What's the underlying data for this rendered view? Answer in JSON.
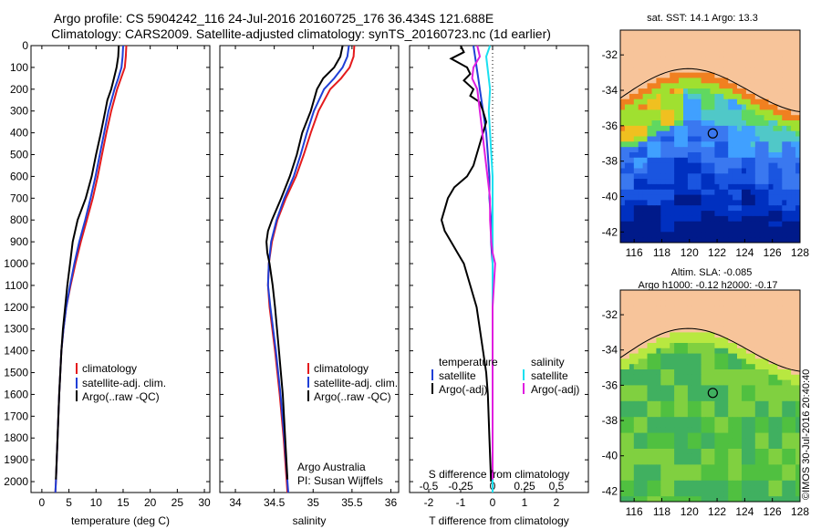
{
  "header": {
    "line1": "Argo profile: CS 5904242_116 24-Jul-2016 20160725_176 36.434S 121.688E",
    "line2": "Climatology: CARS2009. Satellite-adjusted climatology: synTS_20160723.nc (1d earlier)"
  },
  "copyright": "©IMOS 30-Jul-2016 20:40:40",
  "colors": {
    "climatology": "#e41a1c",
    "satellite": "#1f3fd6",
    "argo": "#000000",
    "sat_salinity": "#19e0f0",
    "argo_adj_salinity": "#e01ee0"
  },
  "panels": {
    "temperature": {
      "xlabel": "temperature (deg C)",
      "legend": [
        "climatology",
        "satellite-adj. clim.",
        "Argo(..raw -QC)"
      ]
    },
    "salinity": {
      "xlabel": "salinity",
      "legend": [
        "climatology",
        "satellite-adj. clim.",
        "Argo(..raw -QC)"
      ],
      "note1": "Argo Australia",
      "note2": "PI: Susan Wijffels"
    },
    "difference": {
      "xlabel": "T difference from climatology",
      "top_axis_label": "S difference from climatology",
      "legend_t_title": "temperature",
      "legend_s_title": "salinity",
      "legend_t": [
        "satellite",
        "Argo(-adj)"
      ],
      "legend_s": [
        "satellite",
        "Argo(-adj)"
      ]
    },
    "map_sst": {
      "title": "sat. SST: 14.1  Argo: 13.3",
      "legend": []
    },
    "map_sla": {
      "title1": "Altim. SLA: -0.085",
      "title2": "Argo h1000: -0.12 h2000: -0.17"
    }
  },
  "chart_data": [
    {
      "type": "line",
      "id": "temperature",
      "xlabel": "temperature (deg C)",
      "xlim": [
        -2,
        31
      ],
      "ylim": [
        0,
        2050
      ],
      "yticks": [
        0,
        100,
        200,
        300,
        400,
        500,
        600,
        700,
        800,
        900,
        1000,
        1100,
        1200,
        1300,
        1400,
        1500,
        1600,
        1700,
        1800,
        1900,
        2000
      ],
      "xticks": [
        0,
        5,
        10,
        15,
        20,
        25,
        30
      ],
      "series": [
        {
          "name": "climatology",
          "depth": [
            0,
            50,
            100,
            150,
            200,
            300,
            400,
            500,
            600,
            700,
            800,
            900,
            1000,
            1100,
            1200,
            1300,
            1400,
            1600,
            1800,
            2000,
            2050
          ],
          "values": [
            15.6,
            15.5,
            15.3,
            14.6,
            13.9,
            12.8,
            11.9,
            11.1,
            10.3,
            9.4,
            8.3,
            7.2,
            6.2,
            5.3,
            4.5,
            4.0,
            3.6,
            3.2,
            2.9,
            2.6,
            2.5
          ]
        },
        {
          "name": "satellite-adj. clim.",
          "depth": [
            0,
            50,
            100,
            150,
            200,
            300,
            400,
            500,
            600,
            700,
            800,
            900,
            1000,
            1100,
            1200,
            1300,
            1400,
            1600,
            1800,
            2000,
            2050
          ],
          "values": [
            15.0,
            14.9,
            14.7,
            14.1,
            13.4,
            12.3,
            11.5,
            10.7,
            9.9,
            9.0,
            8.0,
            6.9,
            6.0,
            5.2,
            4.5,
            4.0,
            3.6,
            3.2,
            2.9,
            2.6,
            2.5
          ]
        },
        {
          "name": "Argo(..raw -QC)",
          "depth": [
            0,
            50,
            100,
            150,
            200,
            250,
            300,
            400,
            500,
            600,
            700,
            800,
            900,
            1000,
            1100,
            1200,
            1300,
            1400,
            1600,
            1800,
            1990
          ],
          "values": [
            14.2,
            14.1,
            13.8,
            13.3,
            12.8,
            12.1,
            11.7,
            10.9,
            10.0,
            9.2,
            8.1,
            6.6,
            5.7,
            5.2,
            4.7,
            4.3,
            3.9,
            3.6,
            3.2,
            2.9,
            2.6
          ]
        }
      ]
    },
    {
      "type": "line",
      "id": "salinity",
      "xlabel": "salinity",
      "xlim": [
        33.8,
        36.1
      ],
      "ylim": [
        0,
        2050
      ],
      "xticks": [
        34,
        34.5,
        35,
        35.5,
        36
      ],
      "series": [
        {
          "name": "climatology",
          "depth": [
            0,
            50,
            100,
            150,
            200,
            300,
            400,
            500,
            600,
            700,
            800,
            900,
            1000,
            1100,
            1200,
            1400,
            1600,
            1800,
            2000,
            2050
          ],
          "values": [
            35.53,
            35.52,
            35.47,
            35.36,
            35.22,
            35.07,
            34.97,
            34.88,
            34.78,
            34.65,
            34.54,
            34.47,
            34.43,
            34.42,
            34.44,
            34.51,
            34.57,
            34.62,
            34.66,
            34.67
          ]
        },
        {
          "name": "satellite-adj. clim.",
          "depth": [
            0,
            50,
            100,
            150,
            200,
            300,
            400,
            500,
            600,
            700,
            800,
            900,
            1000,
            1100,
            1200,
            1400,
            1600,
            1800,
            2000,
            2050
          ],
          "values": [
            35.46,
            35.44,
            35.38,
            35.27,
            35.14,
            35.01,
            34.92,
            34.84,
            34.75,
            34.63,
            34.53,
            34.46,
            34.43,
            34.42,
            34.45,
            34.52,
            34.58,
            34.63,
            34.67,
            34.68
          ]
        },
        {
          "name": "Argo(..raw -QC)",
          "depth": [
            0,
            50,
            100,
            150,
            200,
            300,
            400,
            500,
            600,
            700,
            800,
            850,
            900,
            950,
            1000,
            1100,
            1200,
            1400,
            1600,
            1800,
            1990
          ],
          "values": [
            35.38,
            35.35,
            35.27,
            35.13,
            35.05,
            34.97,
            34.86,
            34.79,
            34.7,
            34.59,
            34.47,
            34.42,
            34.4,
            34.41,
            34.44,
            34.48,
            34.51,
            34.56,
            34.61,
            34.64,
            34.67
          ]
        }
      ]
    },
    {
      "type": "line",
      "id": "difference",
      "xlabel": "T difference from climatology",
      "top_label": "S difference from climatology",
      "xlim": [
        -2.6,
        3.0
      ],
      "ylim": [
        0,
        2050
      ],
      "xticks": [
        -2,
        -1,
        0,
        1,
        2
      ],
      "top_ticks": [
        -0.5,
        -0.25,
        0,
        0.25,
        0.5
      ],
      "series": [
        {
          "name": "T satellite",
          "depth": [
            0,
            50,
            100,
            150,
            200,
            300,
            400,
            500,
            600,
            700,
            800,
            900,
            1000,
            1200,
            1400,
            1600,
            1800,
            2000,
            2050
          ],
          "values": [
            -0.6,
            -0.55,
            -0.5,
            -0.45,
            -0.4,
            -0.3,
            -0.2,
            -0.15,
            -0.1,
            -0.1,
            -0.05,
            -0.05,
            0,
            0,
            0,
            0,
            0,
            0,
            0
          ]
        },
        {
          "name": "T Argo(-adj)",
          "depth": [
            0,
            30,
            60,
            100,
            130,
            160,
            200,
            230,
            260,
            300,
            350,
            400,
            450,
            500,
            550,
            600,
            650,
            700,
            750,
            800,
            850,
            900,
            950,
            1000,
            1100,
            1200,
            1300,
            1400,
            1500,
            1600,
            1800,
            2000
          ],
          "values": [
            -1.0,
            -0.9,
            -1.3,
            -0.8,
            -0.7,
            -0.9,
            -0.6,
            -0.7,
            -0.4,
            -0.3,
            -0.2,
            -0.3,
            -0.4,
            -0.5,
            -0.6,
            -0.8,
            -1.2,
            -1.4,
            -1.5,
            -1.6,
            -1.5,
            -1.3,
            -1.1,
            -0.9,
            -0.7,
            -0.5,
            -0.4,
            -0.3,
            -0.2,
            -0.15,
            -0.1,
            -0.05
          ]
        },
        {
          "name": "S satellite",
          "depth": [
            0,
            50,
            100,
            150,
            200,
            300,
            400,
            500,
            600,
            700,
            800,
            900,
            1000,
            1200,
            1400,
            1600,
            1800,
            2000,
            2050
          ],
          "values": [
            -0.02,
            -0.05,
            -0.04,
            -0.03,
            -0.02,
            -0.03,
            -0.02,
            -0.01,
            0,
            0,
            0,
            0,
            0,
            0,
            0,
            0,
            0,
            0,
            0
          ]
        },
        {
          "name": "S Argo(-adj)",
          "depth": [
            0,
            50,
            100,
            150,
            200,
            300,
            400,
            500,
            600,
            700,
            800,
            900,
            950,
            1000,
            1100,
            1200,
            1400,
            1600,
            1800,
            1990
          ],
          "values": [
            -0.12,
            -0.1,
            -0.15,
            -0.16,
            -0.12,
            -0.1,
            -0.08,
            -0.06,
            -0.04,
            -0.02,
            -0.02,
            -0.01,
            0.0,
            0.02,
            0.01,
            0.0,
            0.0,
            0.0,
            0.0,
            0.0
          ]
        }
      ]
    },
    {
      "type": "heatmap",
      "id": "map_sst",
      "title": "sat. SST: 14.1  Argo: 13.3",
      "xlim": [
        115,
        128
      ],
      "ylim": [
        -42.6,
        -30.6
      ],
      "xticks": [
        116,
        118,
        120,
        122,
        124,
        126,
        128
      ],
      "yticks": [
        -32,
        -34,
        -36,
        -38,
        -40,
        -42
      ],
      "marker": {
        "lon": 121.688,
        "lat": -36.434
      }
    },
    {
      "type": "heatmap",
      "id": "map_sla",
      "title": "Altim. SLA: -0.085",
      "subtitle": "Argo h1000: -0.12 h2000: -0.17",
      "xlim": [
        115,
        128
      ],
      "ylim": [
        -42.6,
        -30.6
      ],
      "xticks": [
        116,
        118,
        120,
        122,
        124,
        126,
        128
      ],
      "yticks": [
        -32,
        -34,
        -36,
        -38,
        -40,
        -42
      ],
      "marker": {
        "lon": 121.688,
        "lat": -36.434
      }
    }
  ]
}
